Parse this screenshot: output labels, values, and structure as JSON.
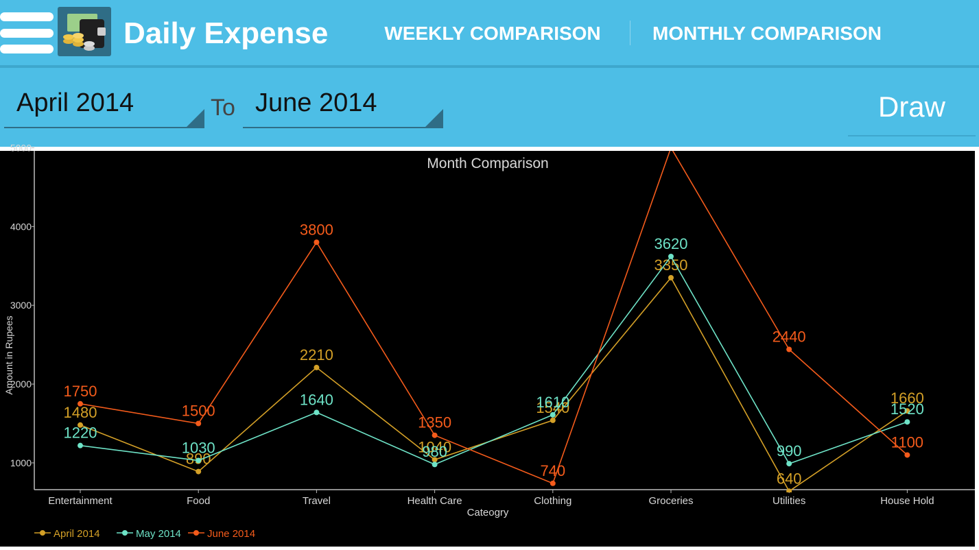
{
  "app": {
    "title": "Daily Expense"
  },
  "tabs": [
    {
      "label": "WEEKLY COMPARISON"
    },
    {
      "label": "MONTHLY COMPARISON"
    }
  ],
  "selector": {
    "from": "April 2014",
    "to_label": "To",
    "to": "June 2014",
    "draw_label": "Draw"
  },
  "icons": {
    "menu": "menu-icon",
    "app": "wallet-coins-icon"
  },
  "colors": {
    "bar": "#4dbee6",
    "april": "#d4a027",
    "may": "#6ee3c7",
    "june": "#f45b1b"
  },
  "chart_data": {
    "type": "line",
    "title": "Month Comparison",
    "xlabel": "Cateogry",
    "ylabel": "Amount in Rupees",
    "ylim": [
      660,
      4960
    ],
    "yticks": [
      1000,
      2000,
      3000,
      4000,
      5000
    ],
    "categories": [
      "Entertainment",
      "Food",
      "Travel",
      "Health Care",
      "Clothing",
      "Groceries",
      "Utilities",
      "House Hold"
    ],
    "legend": "bottom-left",
    "series": [
      {
        "name": "April 2014",
        "values": [
          1480,
          890,
          2210,
          1040,
          1540,
          3350,
          640,
          1660
        ]
      },
      {
        "name": "May 2014",
        "values": [
          1220,
          1030,
          1640,
          980,
          1610,
          3620,
          990,
          1520
        ]
      },
      {
        "name": "June 2014",
        "values": [
          1750,
          1500,
          3800,
          1350,
          740,
          5000,
          2440,
          1100
        ]
      }
    ]
  }
}
